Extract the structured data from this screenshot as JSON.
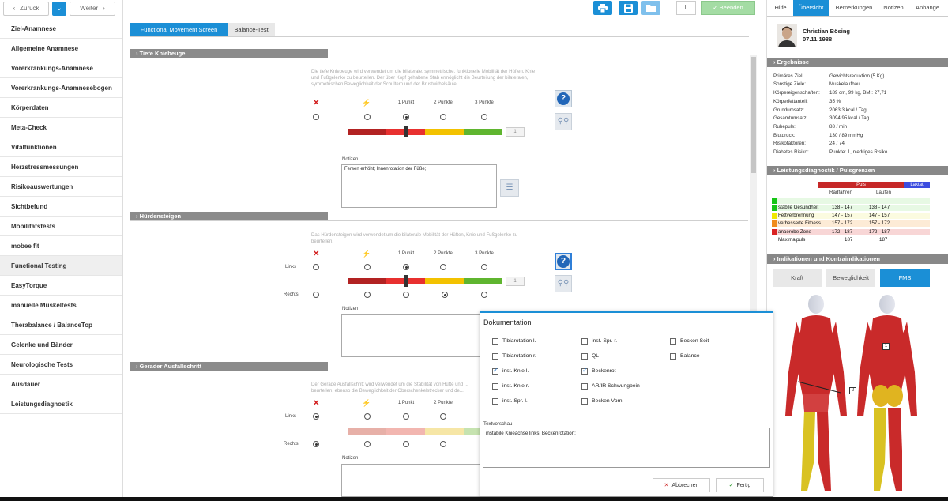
{
  "nav": {
    "back": "Zurück",
    "forward": "Weiter"
  },
  "sidebar": {
    "items": [
      {
        "label": "Ziel-Anamnese"
      },
      {
        "label": "Allgemeine Anamnese"
      },
      {
        "label": "Vorerkrankungs-Anamnese"
      },
      {
        "label": "Vorerkrankungs-Anamnesebogen"
      },
      {
        "label": "Körperdaten"
      },
      {
        "label": "Meta-Check"
      },
      {
        "label": "Vitalfunktionen"
      },
      {
        "label": "Herzstressmessungen"
      },
      {
        "label": "Risikoauswertungen"
      },
      {
        "label": "Sichtbefund"
      },
      {
        "label": "Mobilitätstests"
      },
      {
        "label": "mobee fit"
      },
      {
        "label": "Functional Testing",
        "active": true
      },
      {
        "label": "EasyTorque"
      },
      {
        "label": "manuelle Muskeltests"
      },
      {
        "label": "Therabalance / BalanceTop"
      },
      {
        "label": "Gelenke und Bänder"
      },
      {
        "label": "Neurologische Tests"
      },
      {
        "label": "Ausdauer"
      },
      {
        "label": "Leistungsdiagnostik"
      }
    ]
  },
  "toolbar": {
    "pause": "II",
    "finish": "Beenden",
    "print_icon": "print-icon",
    "save_icon": "save-icon",
    "folder_icon": "folder-icon"
  },
  "tabs": [
    {
      "label": "Functional Movement Screen",
      "active": true
    },
    {
      "label": "Balance-Test"
    }
  ],
  "score_labels": {
    "p1": "1 Punkt",
    "p2": "2 Punkte",
    "p3": "3 Punkte"
  },
  "side_labels": {
    "left": "Links",
    "right": "Rechts"
  },
  "notes_label": "Notizen",
  "sections": {
    "tiefe": {
      "title": "Tiefe Kniebeuge",
      "description": "Die tiefe Kniebeuge wird verwendet um die bilaterale, symmetrische, funktionelle Mobilität der Hüften, Knie und Fußgelenke zu beurteilen. Der über Kopf gehaltene Stab ermöglicht die Beurteilung der bilateralen, symmetrischen Beweglichkeit der Schultern und der Brustwirbelsäule.",
      "score": "1",
      "notes": "Fersen erhöht; Innenrotation der Füße;"
    },
    "huerden": {
      "title": "Hürdensteigen",
      "description": "Das Hürdensteigen wird verwendet um die bilaterale Mobilität der Hüften, Knie und Fußgelenke zu beurteilen.",
      "score": "1",
      "notes": ""
    },
    "ausfall": {
      "title": "Gerader Ausfallschritt",
      "description": "Der Gerade Ausfallschritt wird verwendet um die Stabilität von Hüfte und ... beurteilen, ebenso die Beweglichkeit der Oberschenkelstrecker und de...",
      "notes": ""
    }
  },
  "colors": {
    "accent": "#1b8fd6",
    "finish": "#8fd18f",
    "darkred": "#b22222",
    "red": "#e8302f",
    "yellow": "#f3c200",
    "green": "#5fb52f"
  },
  "right": {
    "tabs": [
      {
        "label": "Hilfe"
      },
      {
        "label": "Übersicht",
        "active": true
      },
      {
        "label": "Bemerkungen"
      },
      {
        "label": "Notizen"
      },
      {
        "label": "Anhänge"
      }
    ],
    "patient": {
      "name": "Christian Bösing",
      "dob": "07.11.1988"
    },
    "results_title": "Ergebnisse",
    "results": [
      {
        "k": "Primäres Ziel:",
        "v": "Gewichtsreduktion (5 Kg)"
      },
      {
        "k": "Sonstige Ziele:",
        "v": "Muskelaufbau"
      },
      {
        "k": "Körpereigenschaften:",
        "v": "189 cm, 99 kg, BMI: 27,71"
      },
      {
        "k": "Körperfettanteil:",
        "v": "35 %"
      },
      {
        "k": "Grundumsatz:",
        "v": "2063,3 kcal / Tag"
      },
      {
        "k": "Gesamtumsatz:",
        "v": "3094,95 kcal / Tag"
      },
      {
        "k": "Ruhepuls:",
        "v": "88 / min"
      },
      {
        "k": "Blutdruck:",
        "v": "130 / 89 mmHg"
      },
      {
        "k": "Risikofaktoren:",
        "v": "24 / 74"
      },
      {
        "k": "Diabetes Risiko:",
        "v": "Punkte: 1, niedriges Risiko"
      }
    ],
    "ld_title": "Leistungsdiagnostik / Pulsgrenzen",
    "ld_puls": "Puls",
    "ld_laktat": "Laktat",
    "ld_cols": [
      "Radfahren",
      "Laufen"
    ],
    "zones": [
      {
        "name": "stabile Gesundheit",
        "rad": "138 - 147",
        "lauf": "138 - 147",
        "color": "#16c516",
        "bg": "#e7f9e4"
      },
      {
        "name": "Fettverbrennung",
        "rad": "147 - 157",
        "lauf": "147 - 157",
        "color": "#f0e800",
        "bg": "#fbfbe0"
      },
      {
        "name": "verbesserte Fitness",
        "rad": "157 - 172",
        "lauf": "157 - 172",
        "color": "#f08c1c",
        "bg": "#fdebd6"
      },
      {
        "name": "anaerobe Zone",
        "rad": "172 - 187",
        "lauf": "172 - 187",
        "color": "#d92323",
        "bg": "#f8d6d6"
      },
      {
        "name": "Maximalpuls",
        "rad": "187",
        "lauf": "187",
        "color": "",
        "bg": "#ffffff"
      }
    ],
    "ind_title": "Indikationen und Kontraindikationen",
    "ind_buttons": [
      {
        "label": "Kraft"
      },
      {
        "label": "Beweglichkeit"
      },
      {
        "label": "FMS",
        "active": true
      }
    ],
    "markers": [
      "1",
      "2"
    ]
  },
  "dialog": {
    "title": "Dokumentation",
    "checkboxes": [
      {
        "label": "Tibiarotation l.",
        "checked": false
      },
      {
        "label": "inst. Spr. r.",
        "checked": false
      },
      {
        "label": "Becken Seit",
        "checked": false
      },
      {
        "label": "Tibiarotation r.",
        "checked": false
      },
      {
        "label": "QL",
        "checked": false
      },
      {
        "label": "Balance",
        "checked": false
      },
      {
        "label": "inst. Knie l.",
        "checked": true
      },
      {
        "label": "Beckenrot",
        "checked": true
      },
      {
        "label": "inst. Knie r.",
        "checked": false
      },
      {
        "label": "AR/IR Schwungbein",
        "checked": false
      },
      {
        "label": "inst. Spr. l.",
        "checked": false
      },
      {
        "label": "Becken Vorn",
        "checked": false
      }
    ],
    "preview_label": "Textvorschau",
    "preview_text": "instabile Knieachse links; Beckenrotation;",
    "cancel": "Abbrechen",
    "ok": "Fertig"
  }
}
